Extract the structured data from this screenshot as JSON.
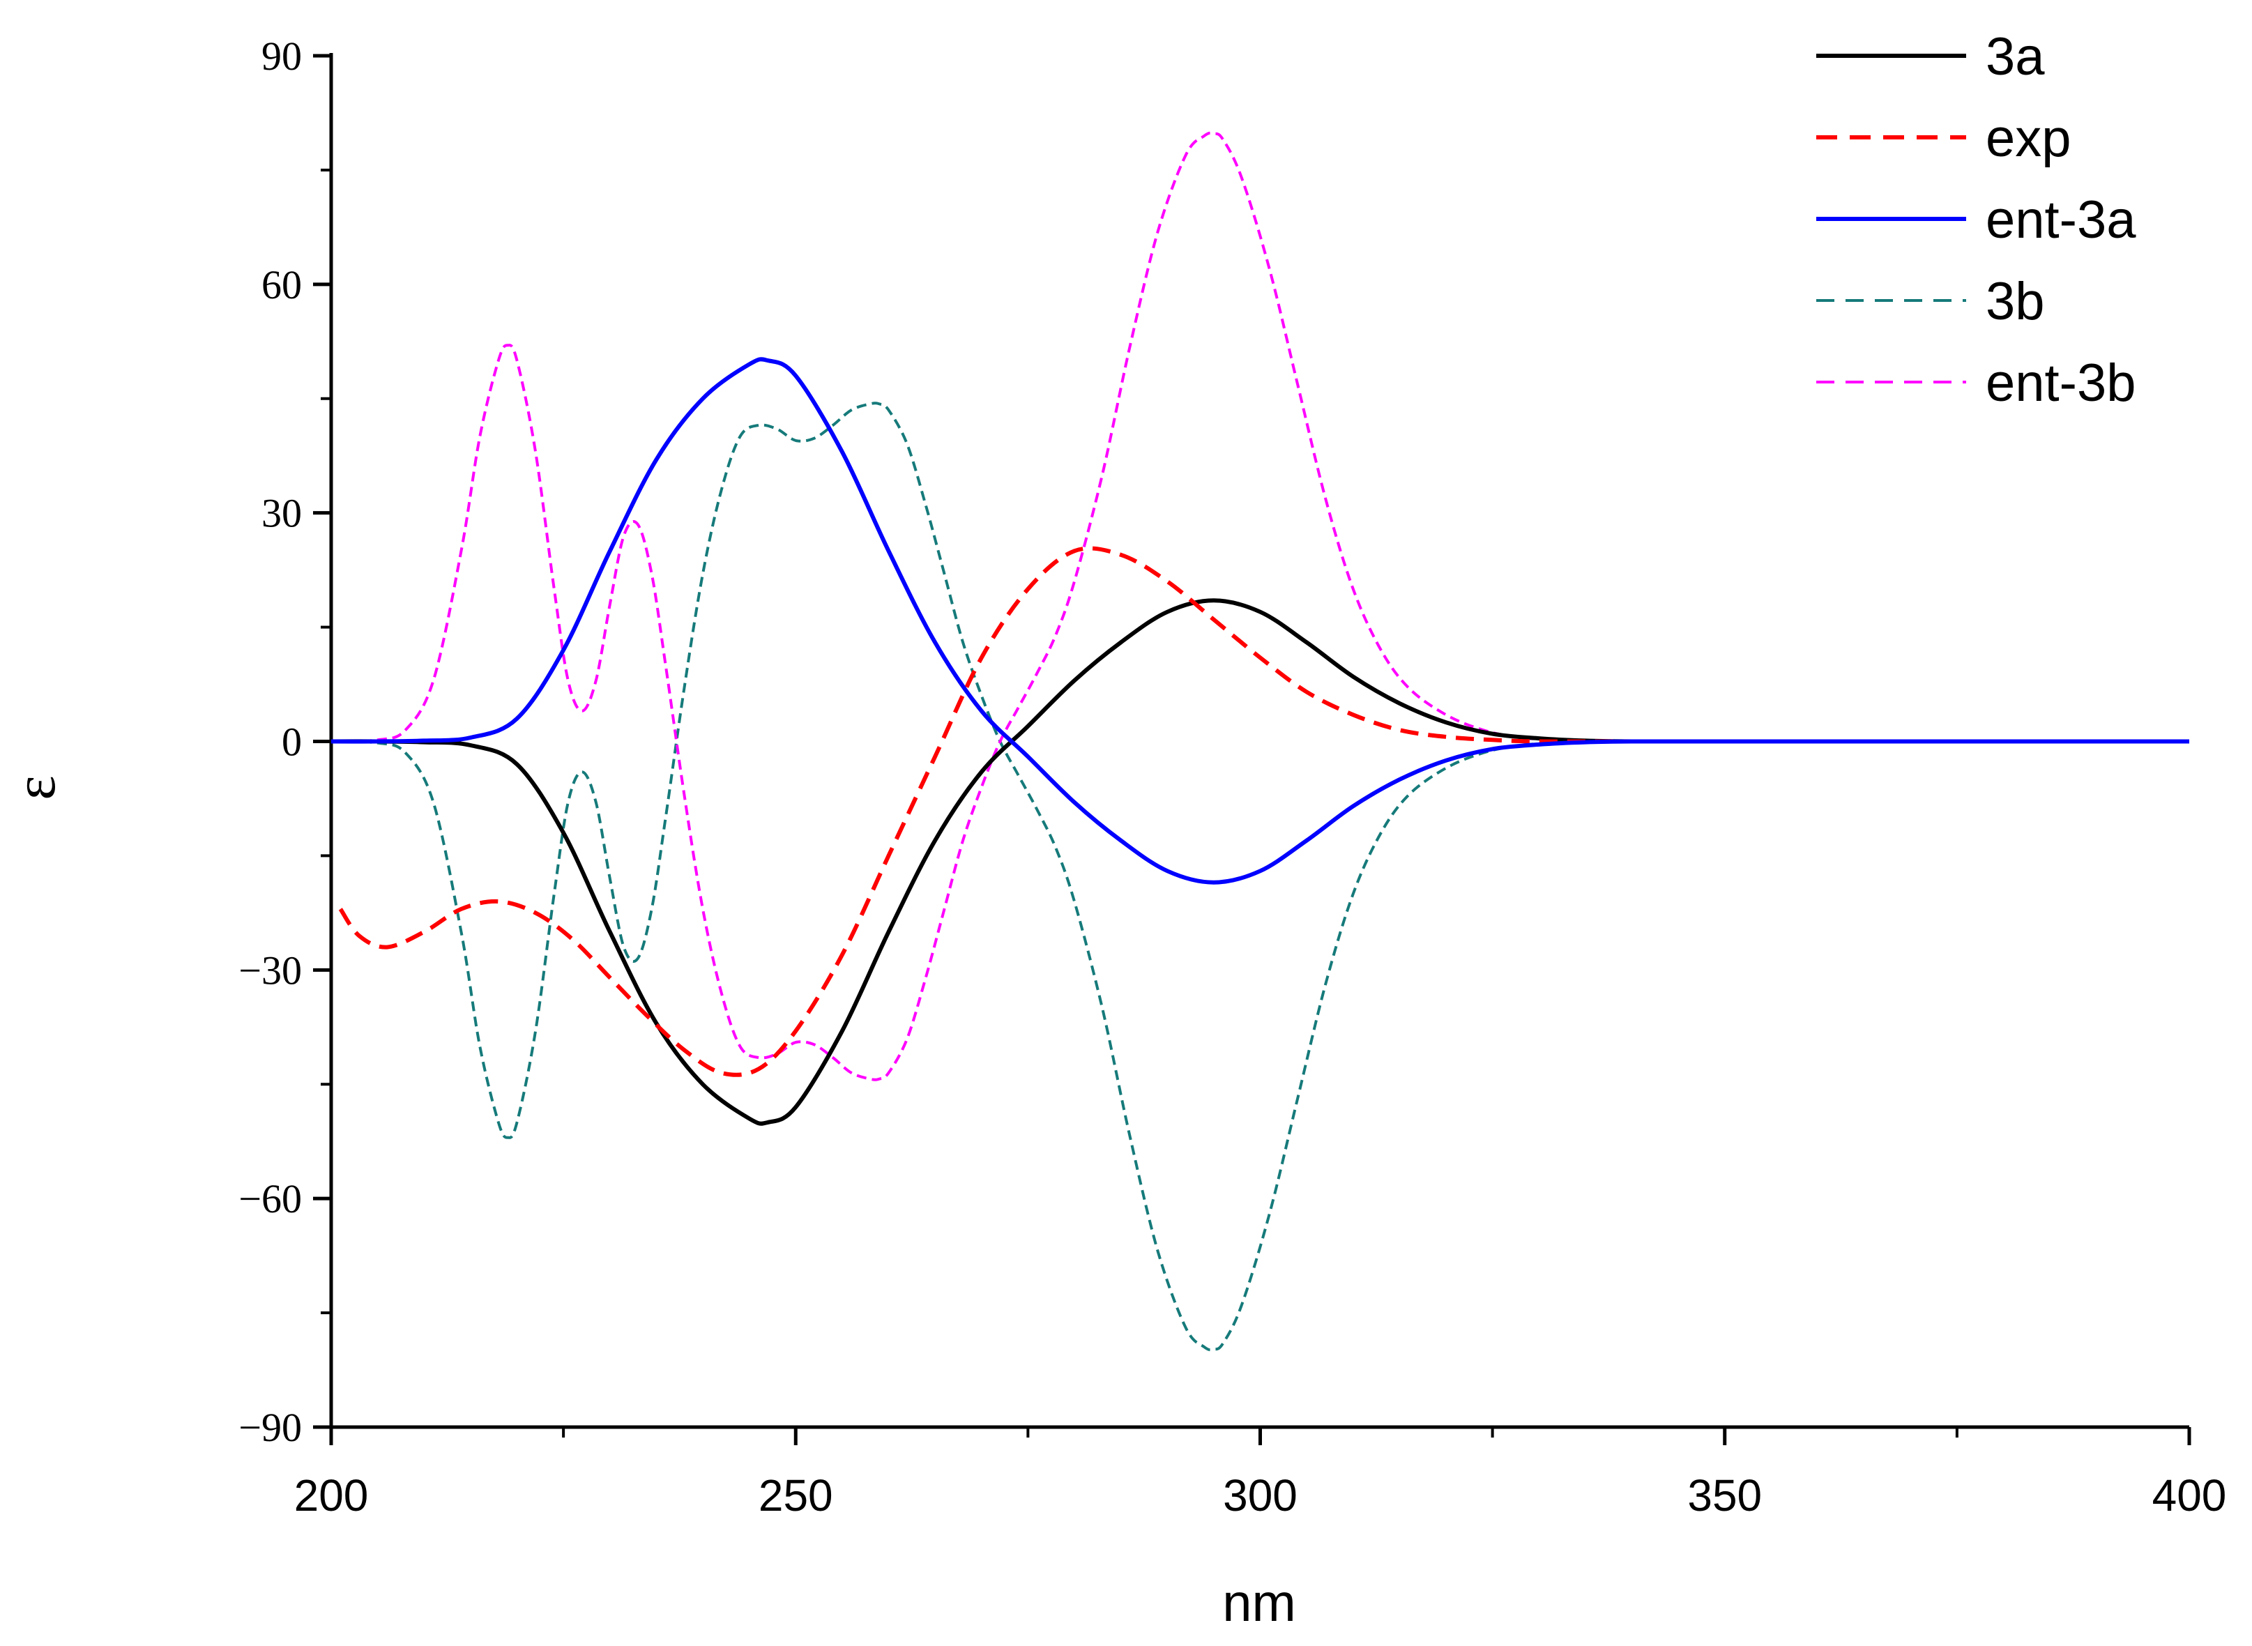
{
  "chart_data": {
    "type": "line",
    "xlabel": "nm",
    "ylabel": "ε",
    "xlim": [
      200,
      400
    ],
    "ylim": [
      -90,
      90
    ],
    "x_ticks": [
      200,
      250,
      300,
      350,
      400
    ],
    "x_tick_labels": [
      "200",
      "250",
      "300",
      "350",
      "400"
    ],
    "y_ticks": [
      -90,
      -60,
      -30,
      0,
      30,
      60,
      90
    ],
    "y_tick_labels": [
      "−90",
      "−60",
      "−30",
      "0",
      "30",
      "60",
      "90"
    ],
    "legend_position": "top-right",
    "grid": false,
    "series": [
      {
        "name": "3a",
        "color": "#000000",
        "dash": "solid",
        "x": [
          200,
          205,
          210,
          215,
          220,
          225,
          230,
          235,
          240,
          245,
          247,
          250,
          255,
          260,
          265,
          270,
          275,
          280,
          285,
          290,
          295,
          300,
          305,
          310,
          315,
          320,
          325,
          330,
          335,
          340,
          350,
          360,
          370,
          380,
          390,
          400
        ],
        "y": [
          0,
          0,
          -0.1,
          -0.5,
          -3,
          -12,
          -25,
          -37,
          -45,
          -49.5,
          -50,
          -48,
          -38,
          -25,
          -13,
          -4,
          2,
          8,
          13,
          17,
          18.5,
          17,
          13,
          8.5,
          5,
          2.5,
          1,
          0.4,
          0.1,
          0,
          0,
          0,
          0,
          0,
          0,
          0
        ]
      },
      {
        "name": "exp",
        "color": "#ff0000",
        "dash": "dashed",
        "x": [
          201,
          203,
          206,
          210,
          214,
          218,
          222,
          226,
          230,
          234,
          238,
          242,
          246,
          250,
          255,
          260,
          265,
          270,
          275,
          280,
          285,
          290,
          295,
          300,
          305,
          310,
          315,
          320,
          325,
          330,
          340,
          350,
          360,
          370,
          380,
          390,
          400
        ],
        "y": [
          -22,
          -25.5,
          -27,
          -25,
          -22,
          -21,
          -22.5,
          -26,
          -31,
          -36,
          -40.5,
          -43.5,
          -43,
          -38,
          -28,
          -15,
          -2,
          11,
          20,
          25,
          24.5,
          21,
          16,
          11,
          6.5,
          3.5,
          1.5,
          0.6,
          0.2,
          0,
          0,
          0,
          0,
          0,
          0,
          0,
          0
        ]
      },
      {
        "name": "ent-3a",
        "color": "#0000ff",
        "dash": "solid",
        "x": [
          200,
          205,
          210,
          215,
          220,
          225,
          230,
          235,
          240,
          245,
          247,
          250,
          255,
          260,
          265,
          270,
          275,
          280,
          285,
          290,
          295,
          300,
          305,
          310,
          315,
          320,
          325,
          330,
          335,
          340,
          350,
          360,
          370,
          380,
          390,
          400
        ],
        "y": [
          0,
          0,
          0.1,
          0.5,
          3,
          12,
          25,
          37,
          45,
          49.5,
          50,
          48,
          38,
          25,
          13,
          4,
          -2,
          -8,
          -13,
          -17,
          -18.5,
          -17,
          -13,
          -8.5,
          -5,
          -2.5,
          -1,
          -0.4,
          -0.1,
          0,
          0,
          0,
          0,
          0,
          0,
          0
        ]
      },
      {
        "name": "3b",
        "color": "#167a7a",
        "dash": "dashed",
        "x": [
          200,
          205,
          208,
          211,
          214,
          216,
          218,
          219,
          220,
          222,
          224,
          225.5,
          227,
          228.5,
          230,
          231.5,
          233,
          234.5,
          236,
          238,
          240,
          242,
          244,
          246,
          248,
          250,
          252,
          254,
          256,
          258,
          259,
          260,
          262,
          264,
          266,
          268,
          270,
          272,
          274,
          276,
          278,
          280,
          283,
          286,
          289,
          292,
          294,
          295,
          296,
          298,
          301,
          304,
          307,
          310,
          313,
          316,
          320,
          324,
          328,
          332,
          336,
          340,
          345,
          350,
          360,
          370,
          380,
          390,
          400
        ],
        "y": [
          0,
          -0.2,
          -1.5,
          -8,
          -25,
          -40,
          -50,
          -52,
          -50,
          -38,
          -20,
          -8,
          -4,
          -8,
          -18,
          -27,
          -28.5,
          -22,
          -10,
          7,
          22,
          33,
          40,
          41.5,
          41,
          39.5,
          39.8,
          41.5,
          43.5,
          44.3,
          44.3,
          43.5,
          39,
          31,
          22,
          13,
          6,
          0,
          -4.5,
          -9,
          -14,
          -21,
          -35,
          -52,
          -67,
          -77,
          -79.5,
          -79.8,
          -79,
          -74,
          -62,
          -47,
          -32,
          -20,
          -12,
          -7,
          -3.5,
          -1.5,
          -0.5,
          -0.2,
          -0.05,
          0,
          0,
          0,
          0,
          0,
          0,
          0,
          0
        ]
      },
      {
        "name": "ent-3b",
        "color": "#ff00ff",
        "dash": "dashed",
        "x": [
          200,
          205,
          208,
          211,
          214,
          216,
          218,
          219,
          220,
          222,
          224,
          225.5,
          227,
          228.5,
          230,
          231.5,
          233,
          234.5,
          236,
          238,
          240,
          242,
          244,
          246,
          248,
          250,
          252,
          254,
          256,
          258,
          259,
          260,
          262,
          264,
          266,
          268,
          270,
          272,
          274,
          276,
          278,
          280,
          283,
          286,
          289,
          292,
          294,
          295,
          296,
          298,
          301,
          304,
          307,
          310,
          313,
          316,
          320,
          324,
          328,
          332,
          336,
          340,
          345,
          350,
          360,
          370,
          380,
          390,
          400
        ],
        "y": [
          0,
          0.2,
          1.5,
          8,
          25,
          40,
          50,
          52,
          50,
          38,
          20,
          8,
          4,
          8,
          18,
          27,
          28.5,
          22,
          10,
          -7,
          -22,
          -33,
          -40,
          -41.5,
          -41,
          -39.5,
          -39.8,
          -41.5,
          -43.5,
          -44.3,
          -44.3,
          -43.5,
          -39,
          -31,
          -22,
          -13,
          -6,
          0,
          4.5,
          9,
          14,
          21,
          35,
          52,
          67,
          77,
          79.5,
          79.8,
          79,
          74,
          62,
          47,
          32,
          20,
          12,
          7,
          3.5,
          1.5,
          0.5,
          0.2,
          0.05,
          0,
          0,
          0,
          0,
          0,
          0,
          0,
          0
        ]
      }
    ]
  }
}
